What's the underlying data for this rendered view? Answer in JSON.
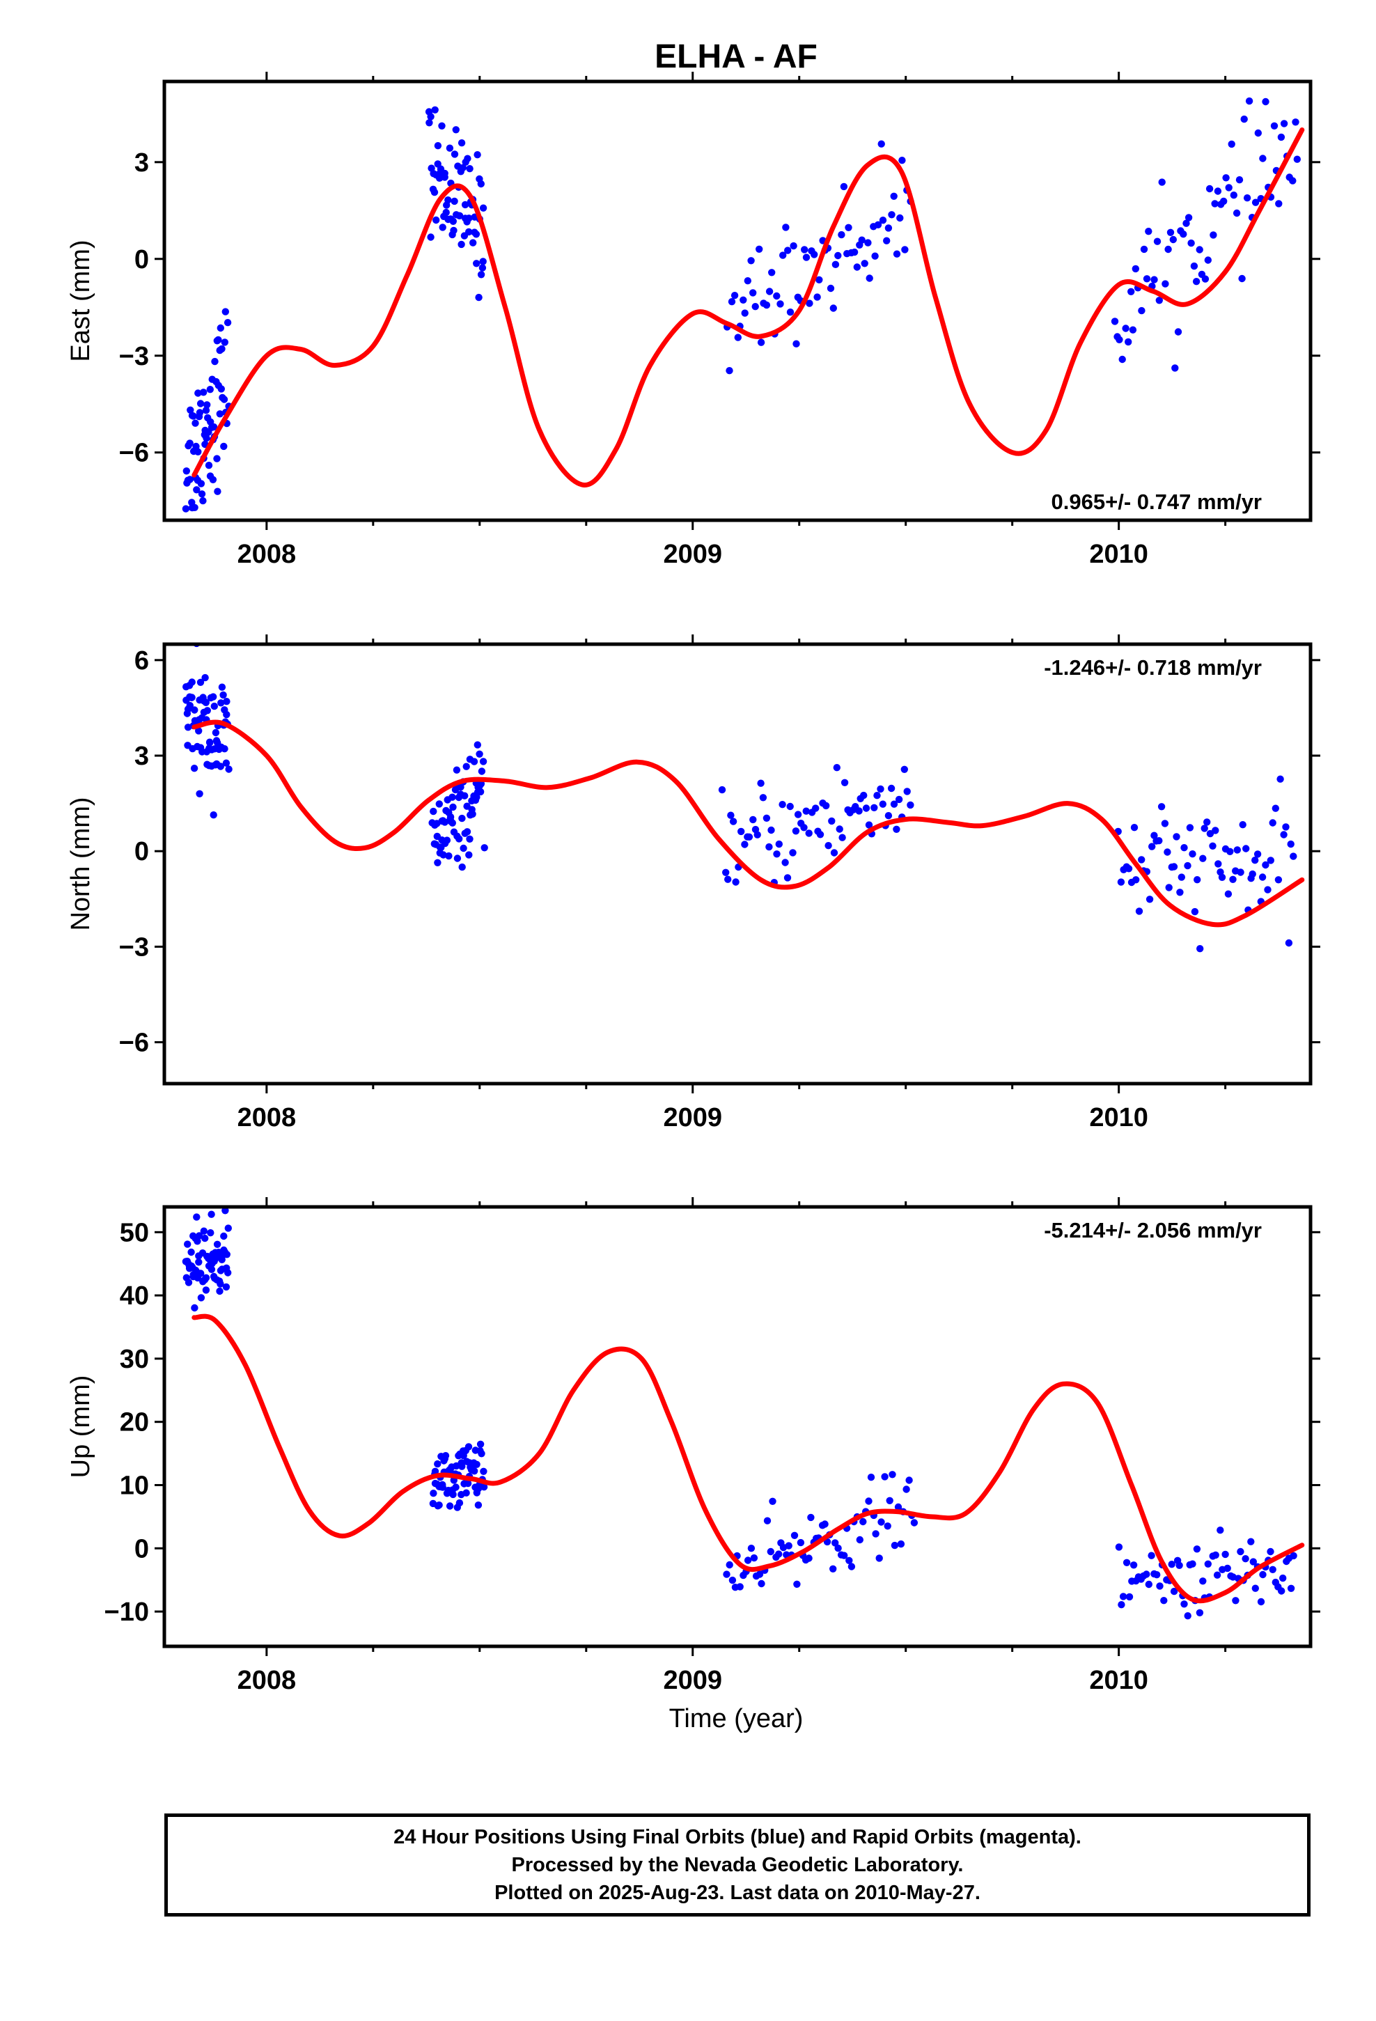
{
  "figure": {
    "title": "ELHA - AF",
    "xlabel": "Time (year)"
  },
  "colors": {
    "data_points": "#0000ff",
    "model_line": "#ff0000",
    "axes": "#000000",
    "background": "#ffffff"
  },
  "chart_data": [
    {
      "type": "scatter",
      "panel": "east",
      "ylabel": "East (mm)",
      "xlim": [
        2007.76,
        2010.45
      ],
      "ylim": [
        -8.1,
        5.5
      ],
      "yticks": [
        -6,
        -3,
        0,
        3
      ],
      "ytick_labels": [
        "−6",
        "−3",
        "0",
        "3"
      ],
      "xticks": [
        2008,
        2009,
        2010
      ],
      "xtick_labels": [
        "2008",
        "2009",
        "2010"
      ],
      "rate_label": "0.965+/- 0.747 mm/yr",
      "rate_position": "bottom-right",
      "grid": false,
      "series": [
        {
          "name": "",
          "kind": "points",
          "segments": [
            {
              "x": [
                2007.81,
                2007.91
              ],
              "y": [
                -6.5,
                -3.6
              ],
              "scatter": 1.2
            },
            {
              "x": [
                2008.38,
                2008.51
              ],
              "y": [
                3.0,
                0.8
              ],
              "scatter": 1.0
            },
            {
              "x": [
                2009.08,
                2009.51
              ],
              "y": [
                -1.8,
                1.5
              ],
              "scatter": 0.9
            },
            {
              "x": [
                2009.99,
                2010.42
              ],
              "y": [
                -1.6,
                3.5
              ],
              "scatter": 1.0
            }
          ]
        },
        {
          "name": "",
          "kind": "line",
          "x": [
            2007.83,
            2007.9,
            2008.0,
            2008.08,
            2008.16,
            2008.25,
            2008.33,
            2008.41,
            2008.48,
            2008.56,
            2008.64,
            2008.74,
            2008.82,
            2008.9,
            2009.0,
            2009.08,
            2009.16,
            2009.25,
            2009.33,
            2009.41,
            2009.49,
            2009.57,
            2009.65,
            2009.75,
            2009.83,
            2009.91,
            2010.0,
            2010.08,
            2010.16,
            2010.25,
            2010.33,
            2010.43
          ],
          "y": [
            -6.7,
            -5.0,
            -3.0,
            -2.8,
            -3.3,
            -2.7,
            -0.5,
            1.9,
            1.9,
            -1.5,
            -5.3,
            -7.0,
            -5.9,
            -3.3,
            -1.7,
            -2.0,
            -2.4,
            -1.6,
            1.0,
            2.9,
            2.7,
            -1.2,
            -4.5,
            -6.0,
            -5.3,
            -2.6,
            -0.8,
            -1.0,
            -1.4,
            -0.4,
            1.5,
            4.0
          ]
        }
      ]
    },
    {
      "type": "scatter",
      "panel": "north",
      "ylabel": "North (mm)",
      "xlim": [
        2007.76,
        2010.45
      ],
      "ylim": [
        -7.3,
        6.5
      ],
      "yticks": [
        -6,
        -3,
        0,
        3,
        6
      ],
      "ytick_labels": [
        "−6",
        "−3",
        "0",
        "3",
        "6"
      ],
      "xticks": [
        2008,
        2009,
        2010
      ],
      "xtick_labels": [
        "2008",
        "2009",
        "2010"
      ],
      "rate_label": "-1.246+/- 0.718 mm/yr",
      "rate_position": "top-right",
      "grid": false,
      "series": [
        {
          "name": "",
          "kind": "points",
          "segments": [
            {
              "x": [
                2007.81,
                2007.91
              ],
              "y": [
                4.2,
                3.5
              ],
              "scatter": 0.9
            },
            {
              "x": [
                2008.39,
                2008.51
              ],
              "y": [
                0.2,
                1.9
              ],
              "scatter": 0.7
            },
            {
              "x": [
                2009.07,
                2009.51
              ],
              "y": [
                0.0,
                1.8
              ],
              "scatter": 0.8
            },
            {
              "x": [
                2010.0,
                2010.41
              ],
              "y": [
                -0.5,
                -0.5
              ],
              "scatter": 0.9
            }
          ]
        },
        {
          "name": "",
          "kind": "line",
          "x": [
            2007.83,
            2007.9,
            2008.0,
            2008.08,
            2008.16,
            2008.23,
            2008.3,
            2008.38,
            2008.46,
            2008.56,
            2008.66,
            2008.76,
            2008.87,
            2008.96,
            2009.06,
            2009.16,
            2009.24,
            2009.32,
            2009.41,
            2009.5,
            2009.6,
            2009.68,
            2009.78,
            2009.88,
            2009.96,
            2010.04,
            2010.12,
            2010.22,
            2010.3,
            2010.43
          ],
          "y": [
            3.9,
            4.0,
            3.0,
            1.4,
            0.3,
            0.1,
            0.6,
            1.6,
            2.2,
            2.2,
            2.0,
            2.3,
            2.8,
            2.2,
            0.4,
            -0.9,
            -1.1,
            -0.5,
            0.6,
            1.0,
            0.9,
            0.8,
            1.1,
            1.5,
            1.0,
            -0.4,
            -1.7,
            -2.3,
            -2.0,
            -0.9
          ]
        }
      ]
    },
    {
      "type": "scatter",
      "panel": "up",
      "ylabel": "Up (mm)",
      "xlim": [
        2007.76,
        2010.45
      ],
      "ylim": [
        -15.5,
        54
      ],
      "yticks": [
        -10,
        0,
        10,
        20,
        30,
        40,
        50
      ],
      "ytick_labels": [
        "−10",
        "0",
        "10",
        "20",
        "30",
        "40",
        "50"
      ],
      "xticks": [
        2008,
        2009,
        2010
      ],
      "xtick_labels": [
        "2008",
        "2009",
        "2010"
      ],
      "rate_label": "-5.214+/- 2.056 mm/yr",
      "rate_position": "top-right",
      "grid": false,
      "series": [
        {
          "name": "",
          "kind": "points",
          "segments": [
            {
              "x": [
                2007.81,
                2007.91
              ],
              "y": [
                45,
                46
              ],
              "scatter": 3.0
            },
            {
              "x": [
                2008.39,
                2008.51
              ],
              "y": [
                10,
                13
              ],
              "scatter": 2.4
            },
            {
              "x": [
                2009.08,
                2009.52
              ],
              "y": [
                -5,
                7
              ],
              "scatter": 3.0
            },
            {
              "x": [
                2010.0,
                2010.41
              ],
              "y": [
                -6,
                -3
              ],
              "scatter": 2.8
            }
          ]
        },
        {
          "name": "",
          "kind": "line",
          "x": [
            2007.83,
            2007.88,
            2007.95,
            2008.03,
            2008.1,
            2008.17,
            2008.24,
            2008.32,
            2008.4,
            2008.48,
            2008.55,
            2008.64,
            2008.72,
            2008.8,
            2008.88,
            2008.95,
            2009.03,
            2009.11,
            2009.18,
            2009.26,
            2009.34,
            2009.41,
            2009.48,
            2009.56,
            2009.64,
            2009.72,
            2009.8,
            2009.87,
            2009.95,
            2010.03,
            2010.1,
            2010.17,
            2010.25,
            2010.33,
            2010.43
          ],
          "y": [
            36.5,
            36,
            29,
            16,
            6,
            2,
            4,
            9,
            11.5,
            11,
            10.5,
            15,
            25,
            31,
            30,
            20,
            6,
            -2.5,
            -2.8,
            -0.5,
            3,
            5.5,
            5.8,
            5,
            5.5,
            12,
            22,
            26,
            23,
            10,
            -2,
            -8,
            -7,
            -3,
            0.5
          ]
        }
      ]
    }
  ],
  "footer": {
    "lines": [
      "24 Hour Positions Using Final Orbits (blue) and Rapid Orbits (magenta).",
      "Processed by the Nevada Geodetic Laboratory.",
      "Plotted on 2025-Aug-23. Last data on 2010-May-27."
    ]
  }
}
